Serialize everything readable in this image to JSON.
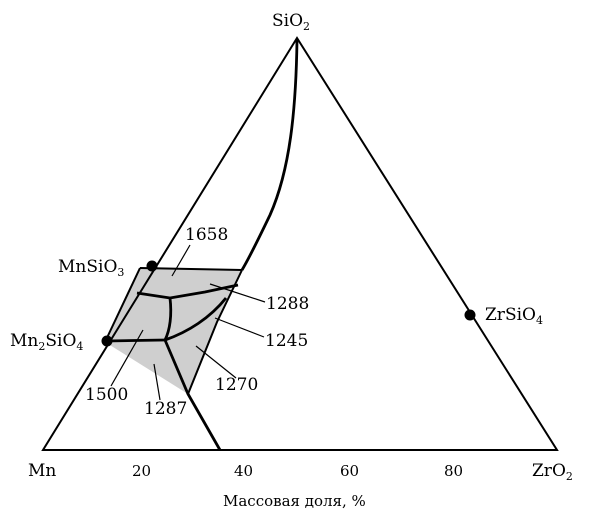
{
  "vertices": {
    "top": {
      "base": "SiO",
      "sub": "2"
    },
    "left": {
      "base": "Mn",
      "sub": ""
    },
    "right": {
      "base": "ZrO",
      "sub": "2"
    }
  },
  "compounds": [
    {
      "base": "MnSiO",
      "sub": "3"
    },
    {
      "base": "Mn",
      "sub": "2",
      "base2": "SiO",
      "sub2": "4"
    },
    {
      "base": "ZrSiO",
      "sub": "4"
    }
  ],
  "temperatures": [
    "1658",
    "1288",
    "1245",
    "1270",
    "1500",
    "1287"
  ],
  "axis": {
    "ticks": [
      "20",
      "40",
      "60",
      "80"
    ],
    "title": "Массовая доля, %"
  },
  "colors": {
    "line": "#000000",
    "fill": "#cfcfcf",
    "background": "#ffffff"
  }
}
